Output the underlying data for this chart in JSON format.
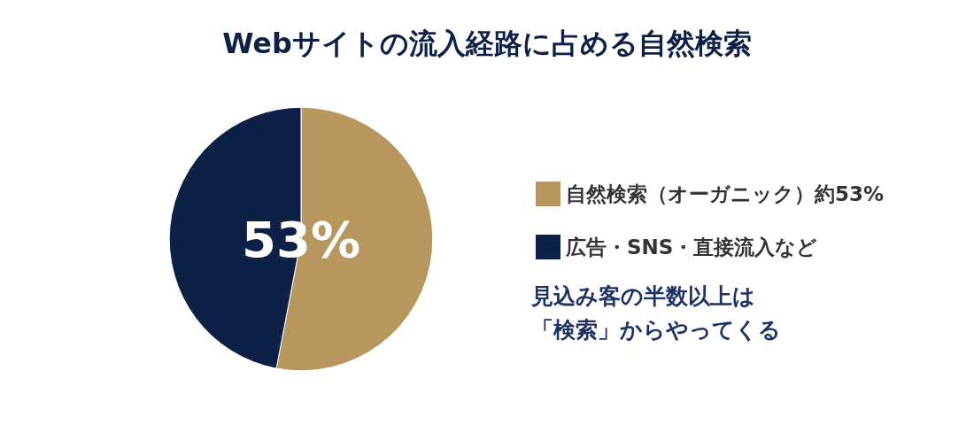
{
  "chart_data": {
    "type": "pie",
    "title": "Webサイトの流入経路に占める自然検索",
    "categories": [
      "自然検索（オーガニック）約53%",
      "広告・SNS・直接流入など"
    ],
    "values": [
      53,
      47
    ],
    "colors": [
      "#b8975f",
      "#0d2046"
    ],
    "value_labels": [
      "53%",
      null
    ],
    "legend": "right",
    "annotations": [
      "見込み客の半数以上は",
      "「検索」からやってくる"
    ]
  }
}
